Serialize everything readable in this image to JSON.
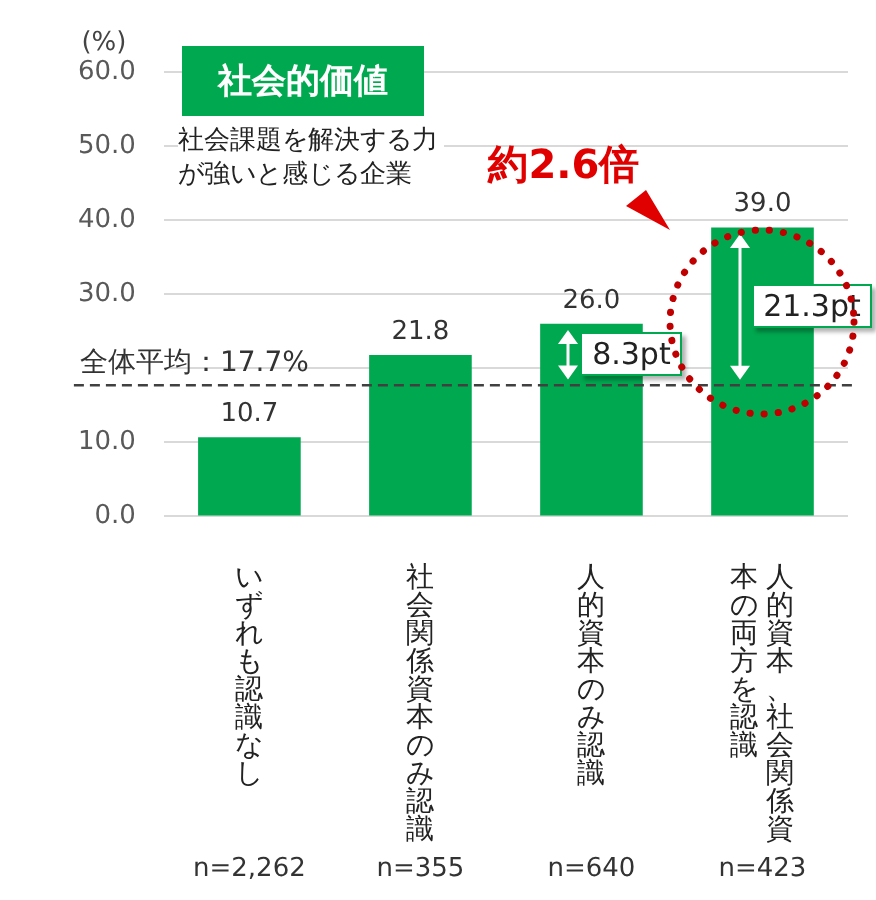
{
  "chart_data": {
    "type": "bar",
    "title": "社会的価値",
    "subtitle": "社会課題を解決する力が強いと感じる企業",
    "ylabel": "(%)",
    "categories": [
      "いずれも認識なし",
      "社会関係資本のみ認識",
      "人的資本のみ認識",
      "人的資本、社会関係資本の両方を認識"
    ],
    "values": [
      10.7,
      21.8,
      26.0,
      39.0
    ],
    "color": "#00a84f",
    "value_labels": [
      "10.7",
      "21.8",
      "26.0",
      "39.0"
    ],
    "ylim": [
      0,
      60
    ],
    "yticks": [
      {
        "value": 0,
        "label": "0.0"
      },
      {
        "value": 10,
        "label": "10.0"
      },
      {
        "value": 20,
        "label": null
      },
      {
        "value": 30,
        "label": "30.0"
      },
      {
        "value": 40,
        "label": "40.0"
      },
      {
        "value": 50,
        "label": "50.0"
      },
      {
        "value": 60,
        "label": "60.0"
      }
    ],
    "grid": "y",
    "ref_lines": [
      {
        "axis": "y",
        "value": 17.7,
        "label": "全体平均：17.7%",
        "color": "#404040",
        "line_style": "dashed"
      }
    ],
    "annotations": [
      "約2.6倍",
      "8.3pt",
      "21.3pt",
      "n=2,262",
      "n=355",
      "n=640",
      "n=423"
    ]
  }
}
